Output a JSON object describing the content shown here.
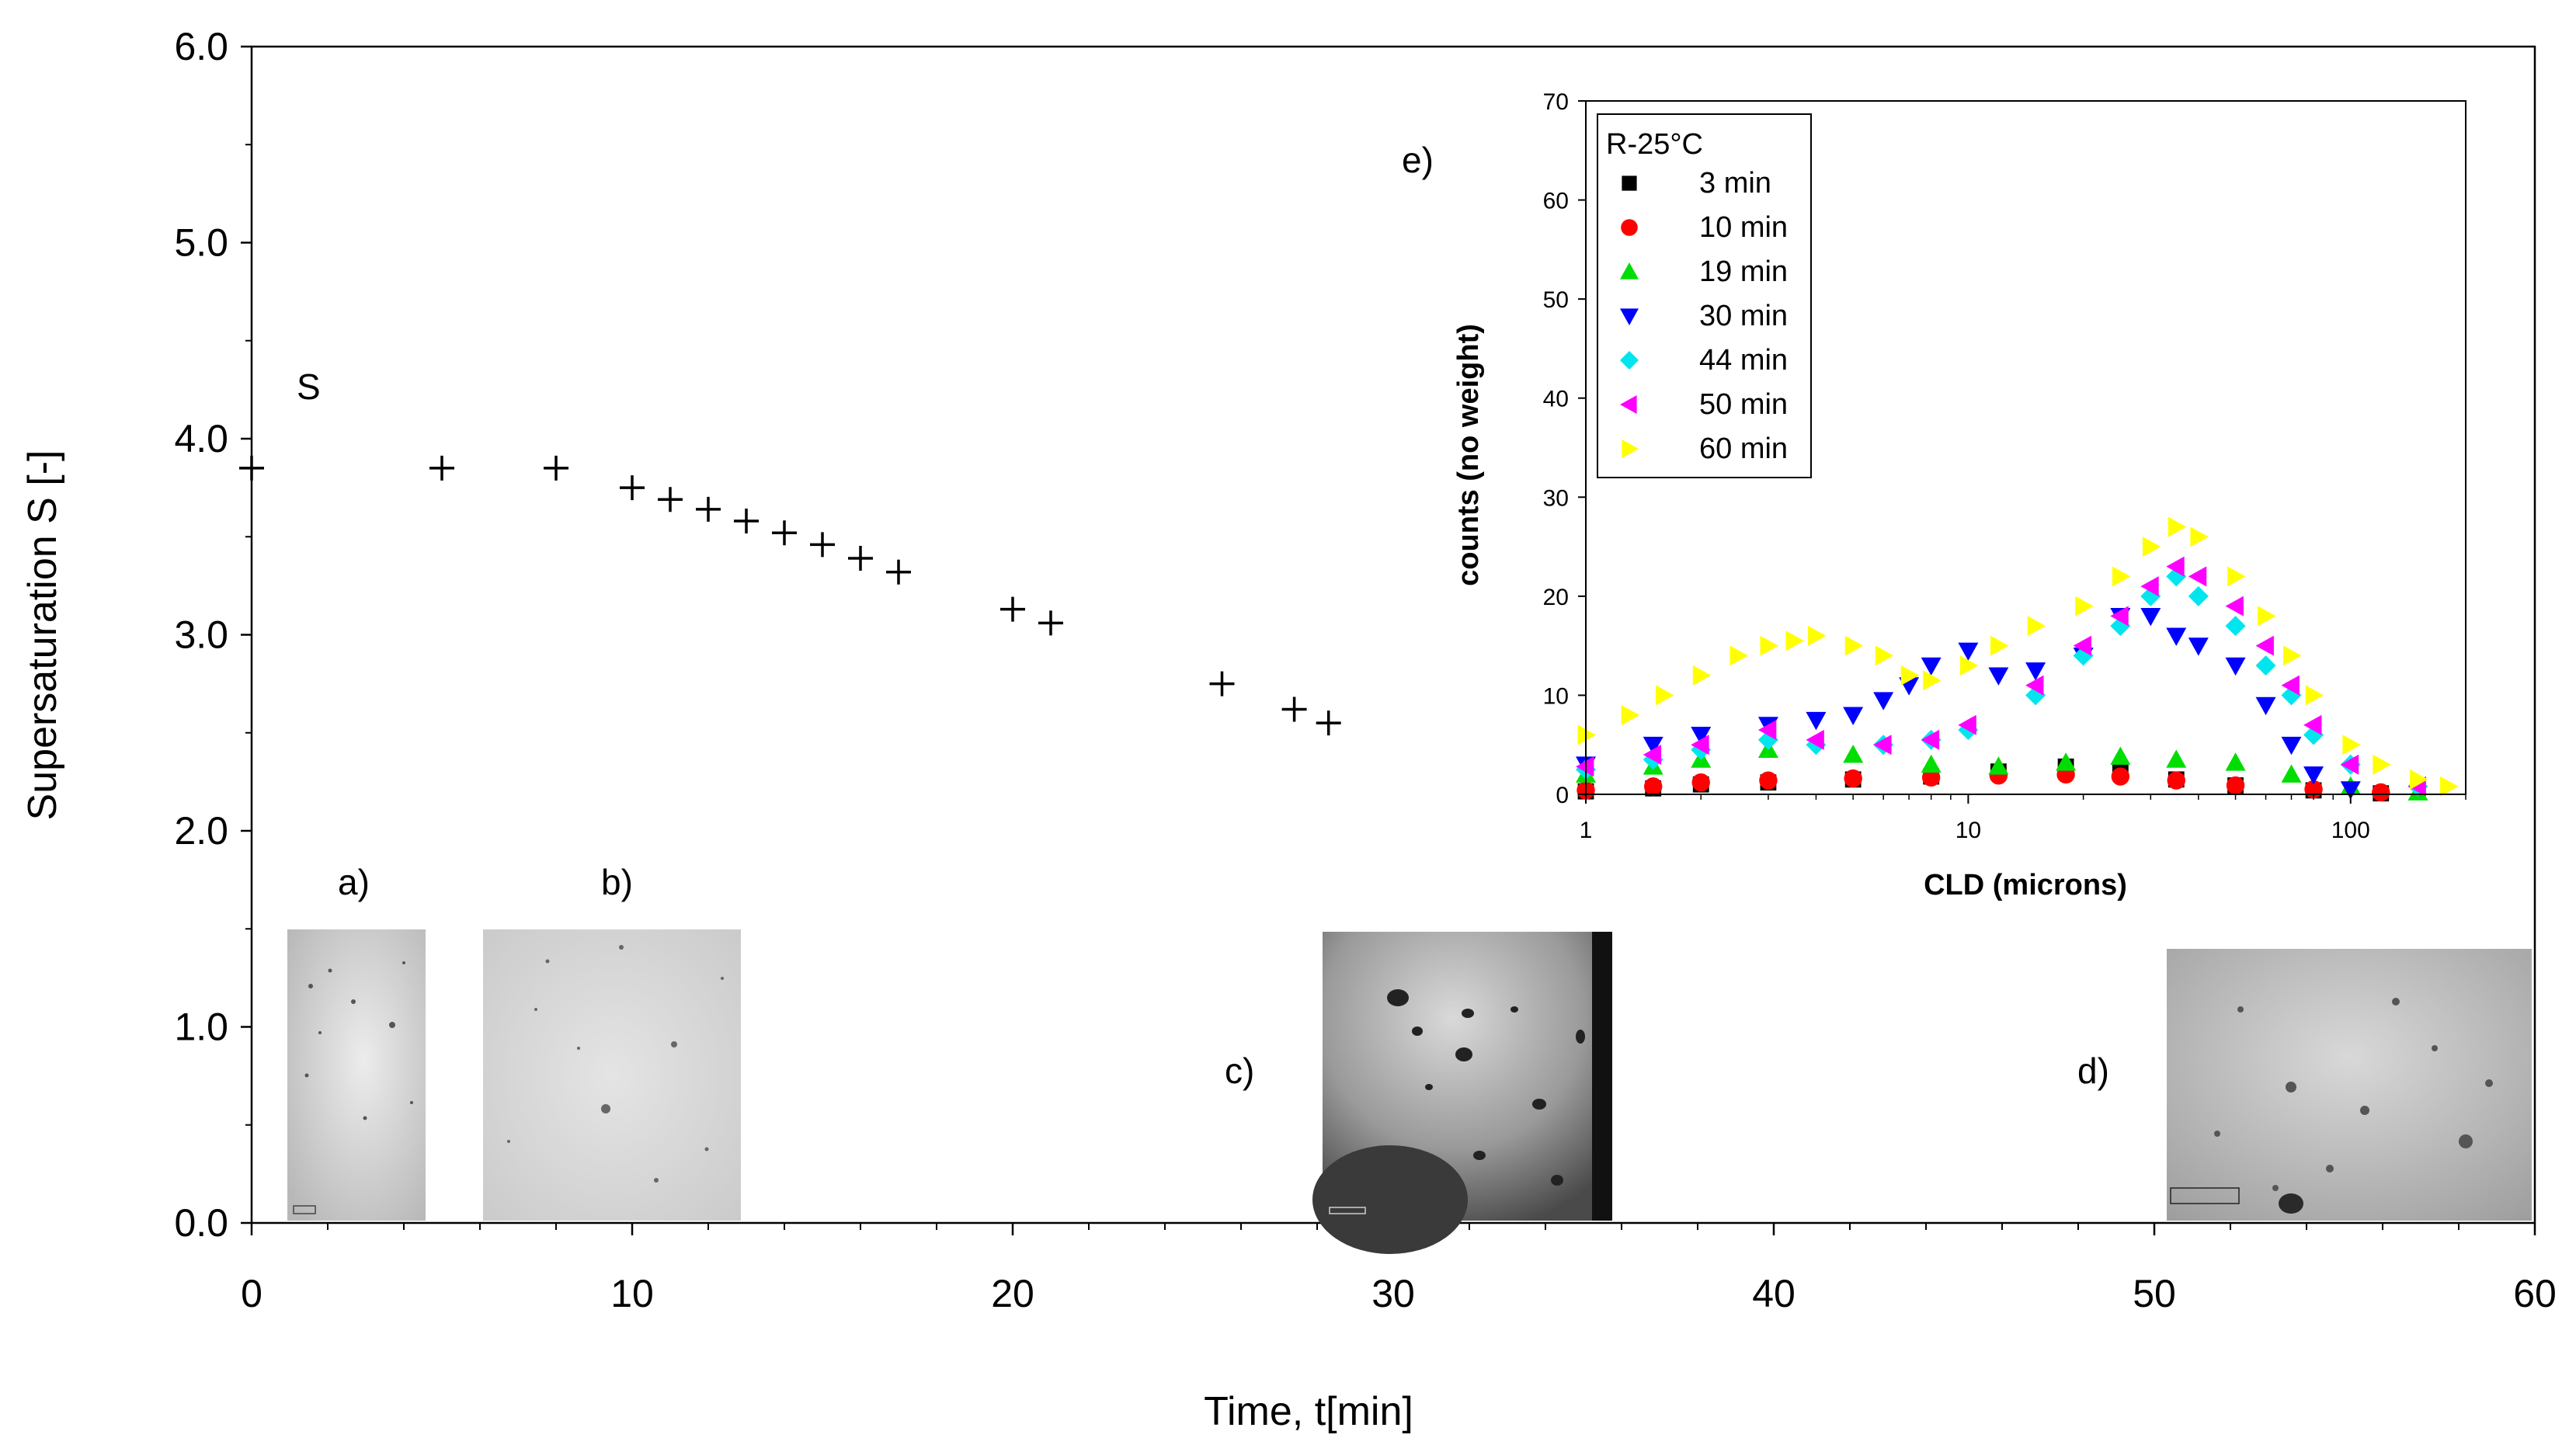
{
  "main_chart": {
    "type": "scatter",
    "xlabel": "Time, t[min]",
    "ylabel": "Supersaturation S [-]",
    "xlim": [
      0,
      60
    ],
    "ylim": [
      0,
      6
    ],
    "xticks": [
      "0",
      "10",
      "20",
      "30",
      "40",
      "50",
      "60"
    ],
    "yticks": [
      "0.0",
      "1.0",
      "2.0",
      "3.0",
      "4.0",
      "5.0",
      "6.0"
    ],
    "series_label": "S",
    "marker": "+"
  },
  "chart_data": {
    "type": "scatter",
    "series": [
      {
        "name": "S",
        "x": [
          0,
          5,
          8,
          10,
          11,
          12,
          13,
          14,
          15,
          16,
          17,
          20,
          21,
          25.5,
          27.4,
          28.3
        ],
        "y": [
          3.85,
          3.85,
          3.85,
          3.75,
          3.69,
          3.64,
          3.58,
          3.52,
          3.46,
          3.39,
          3.32,
          3.13,
          3.06,
          2.75,
          2.62,
          2.55
        ]
      }
    ],
    "xlabel": "Time, t[min]",
    "ylabel": "Supersaturation S [-]",
    "xlim": [
      0,
      60
    ],
    "ylim": [
      0,
      6
    ]
  },
  "inset_chart": {
    "panel_label": "e)",
    "type": "scatter",
    "xlabel": "CLD (microns)",
    "ylabel": "counts (no weight)",
    "xscale": "log",
    "xlim": [
      1,
      200
    ],
    "ylim": [
      0,
      70
    ],
    "xticks": [
      "1",
      "10",
      "100"
    ],
    "yticks": [
      "0",
      "10",
      "20",
      "30",
      "40",
      "50",
      "60",
      "70"
    ],
    "legend_title": "R-25°C",
    "legend_placement": "top-left",
    "series": [
      {
        "name": "3 min",
        "color": "#000000",
        "marker": "square",
        "x": [
          1,
          1.5,
          2,
          3,
          5,
          8,
          12,
          18,
          25,
          35,
          50,
          80,
          120
        ],
        "y": [
          0.3,
          0.6,
          1.0,
          1.2,
          1.5,
          1.8,
          2.3,
          2.8,
          2.2,
          1.5,
          0.9,
          0.4,
          0.1
        ]
      },
      {
        "name": "10 min",
        "color": "#ff0000",
        "marker": "circle",
        "x": [
          1,
          1.5,
          2,
          3,
          5,
          8,
          12,
          18,
          25,
          35,
          50,
          80,
          120
        ],
        "y": [
          0.4,
          0.8,
          1.2,
          1.4,
          1.6,
          1.7,
          1.9,
          2.0,
          1.8,
          1.4,
          0.9,
          0.5,
          0.2
        ]
      },
      {
        "name": "19 min",
        "color": "#00dd00",
        "marker": "triangle-up",
        "x": [
          1,
          1.5,
          2,
          3,
          5,
          8,
          12,
          18,
          25,
          35,
          50,
          70,
          100,
          150
        ],
        "y": [
          2.0,
          2.8,
          3.5,
          4.5,
          4.0,
          3.0,
          2.8,
          3.2,
          3.8,
          3.5,
          3.2,
          2.0,
          0.8,
          0.2
        ]
      },
      {
        "name": "30 min",
        "color": "#0000ff",
        "marker": "triangle-down",
        "x": [
          1,
          1.5,
          2,
          3,
          4,
          5,
          6,
          7,
          8,
          10,
          12,
          15,
          20,
          25,
          30,
          35,
          40,
          50,
          60,
          70,
          80,
          100
        ],
        "y": [
          3.0,
          5.0,
          6.0,
          7.0,
          7.5,
          8.0,
          9.5,
          11.0,
          13.0,
          14.5,
          12.0,
          12.5,
          14.0,
          18.0,
          18.0,
          16.0,
          15.0,
          13.0,
          9.0,
          5.0,
          2.0,
          0.5
        ]
      },
      {
        "name": "44 min",
        "color": "#00e5ee",
        "marker": "diamond",
        "x": [
          1,
          1.5,
          2,
          3,
          4,
          6,
          8,
          10,
          15,
          20,
          25,
          30,
          35,
          40,
          50,
          60,
          70,
          80,
          100,
          150
        ],
        "y": [
          2.5,
          3.5,
          4.5,
          5.5,
          5.0,
          5.0,
          5.5,
          6.5,
          10.0,
          14.0,
          17.0,
          20.0,
          22.0,
          20.0,
          17.0,
          13.0,
          10.0,
          6.0,
          3.0,
          0.8
        ]
      },
      {
        "name": "50 min",
        "color": "#ff00ff",
        "marker": "triangle-left",
        "x": [
          1,
          1.5,
          2,
          3,
          4,
          6,
          8,
          10,
          15,
          20,
          25,
          30,
          35,
          40,
          50,
          60,
          70,
          80,
          100,
          150
        ],
        "y": [
          2.8,
          4.0,
          5.0,
          6.5,
          5.5,
          5.0,
          5.5,
          7.0,
          11.0,
          15.0,
          18.0,
          21.0,
          23.0,
          22.0,
          19.0,
          15.0,
          11.0,
          7.0,
          3.0,
          0.8
        ]
      },
      {
        "name": "60 min",
        "color": "#ffff00",
        "marker": "triangle-right",
        "x": [
          1,
          1.3,
          1.6,
          2,
          2.5,
          3,
          3.5,
          4,
          5,
          6,
          7,
          8,
          10,
          12,
          15,
          20,
          25,
          30,
          35,
          40,
          50,
          60,
          70,
          80,
          100,
          120,
          150,
          180
        ],
        "y": [
          6.0,
          8.0,
          10.0,
          12.0,
          14.0,
          15.0,
          15.5,
          16.0,
          15.0,
          14.0,
          12.0,
          11.5,
          13.0,
          15.0,
          17.0,
          19.0,
          22.0,
          25.0,
          27.0,
          26.0,
          22.0,
          18.0,
          14.0,
          10.0,
          5.0,
          3.0,
          1.5,
          0.8
        ]
      }
    ]
  },
  "micrographs": [
    {
      "label": "a)"
    },
    {
      "label": "b)"
    },
    {
      "label": "c)"
    },
    {
      "label": "d)"
    }
  ]
}
